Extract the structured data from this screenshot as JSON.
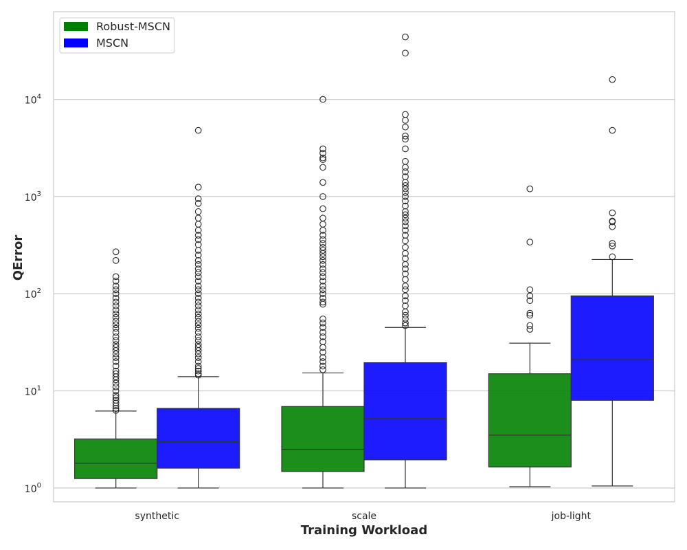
{
  "chart_data": {
    "type": "box",
    "xlabel": "Training Workload",
    "ylabel": "QError",
    "yscale": "log",
    "ylim": [
      0.72,
      80000
    ],
    "y_ticks": [
      {
        "value": 1,
        "base": "10",
        "exp": "0"
      },
      {
        "value": 10,
        "base": "10",
        "exp": "1"
      },
      {
        "value": 100,
        "base": "10",
        "exp": "2"
      },
      {
        "value": 1000,
        "base": "10",
        "exp": "3"
      },
      {
        "value": 10000,
        "base": "10",
        "exp": "4"
      }
    ],
    "grid": "horizontal",
    "legend_position": "top-left",
    "categories": [
      "synthetic",
      "scale",
      "job-light"
    ],
    "series": [
      {
        "name": "Robust-MSCN",
        "color": "#008000",
        "boxes": [
          {
            "whisker_low": 1.0,
            "q1": 1.25,
            "median": 1.8,
            "q3": 3.2,
            "whisker_high": 6.2,
            "outliers": [
              6.3,
              6.6,
              7,
              7.5,
              8,
              8.5,
              9,
              10,
              11,
              12,
              13,
              14,
              15,
              16,
              18,
              20,
              22,
              24,
              26,
              28,
              30,
              33,
              36,
              40,
              44,
              48,
              52,
              57,
              62,
              68,
              75,
              82,
              90,
              100,
              110,
              120,
              135,
              150,
              220,
              270
            ]
          },
          {
            "whisker_low": 1.0,
            "q1": 1.48,
            "median": 2.5,
            "q3": 6.9,
            "whisker_high": 15.3,
            "outliers": [
              16.5,
              18,
              20,
              22,
              25,
              28,
              32,
              36,
              40,
              45,
              50,
              55,
              78,
              82,
              90,
              100,
              110,
              120,
              135,
              150,
              165,
              180,
              200,
              220,
              240,
              260,
              280,
              300,
              330,
              360,
              400,
              450,
              520,
              600,
              750,
              1000,
              1400,
              2000,
              2400,
              2500,
              2800,
              3100,
              10000
            ]
          },
          {
            "whisker_low": 1.03,
            "q1": 1.65,
            "median": 3.5,
            "q3": 15,
            "whisker_high": 31,
            "outliers": [
              43,
              47,
              60,
              63,
              85,
              95,
              110,
              340,
              1200
            ]
          }
        ]
      },
      {
        "name": "MSCN",
        "color": "#0000ff",
        "boxes": [
          {
            "whisker_low": 1.0,
            "q1": 1.6,
            "median": 3.0,
            "q3": 6.6,
            "whisker_high": 14,
            "outliers": [
              14.5,
              15,
              16,
              17,
              18,
              20,
              22,
              24,
              26,
              28,
              30,
              33,
              36,
              40,
              44,
              48,
              52,
              57,
              62,
              68,
              75,
              82,
              90,
              100,
              110,
              120,
              135,
              150,
              165,
              180,
              200,
              220,
              250,
              280,
              320,
              360,
              400,
              450,
              520,
              600,
              700,
              850,
              950,
              1250,
              4800
            ]
          },
          {
            "whisker_low": 1.0,
            "q1": 1.95,
            "median": 5.2,
            "q3": 19.5,
            "whisker_high": 45,
            "outliers": [
              47,
              50,
              55,
              60,
              65,
              75,
              85,
              95,
              110,
              120,
              140,
              160,
              180,
              200,
              230,
              260,
              300,
              350,
              400,
              450,
              500,
              550,
              600,
              650,
              700,
              800,
              900,
              1000,
              1100,
              1200,
              1300,
              1400,
              1600,
              1800,
              2000,
              2300,
              3100,
              3900,
              4200,
              5200,
              6100,
              7000,
              30000,
              44000
            ]
          },
          {
            "whisker_low": 1.05,
            "q1": 8.0,
            "median": 21,
            "q3": 95,
            "whisker_high": 225,
            "outliers": [
              240,
              310,
              330,
              490,
              550,
              560,
              680,
              4800,
              16000
            ]
          }
        ]
      }
    ]
  }
}
